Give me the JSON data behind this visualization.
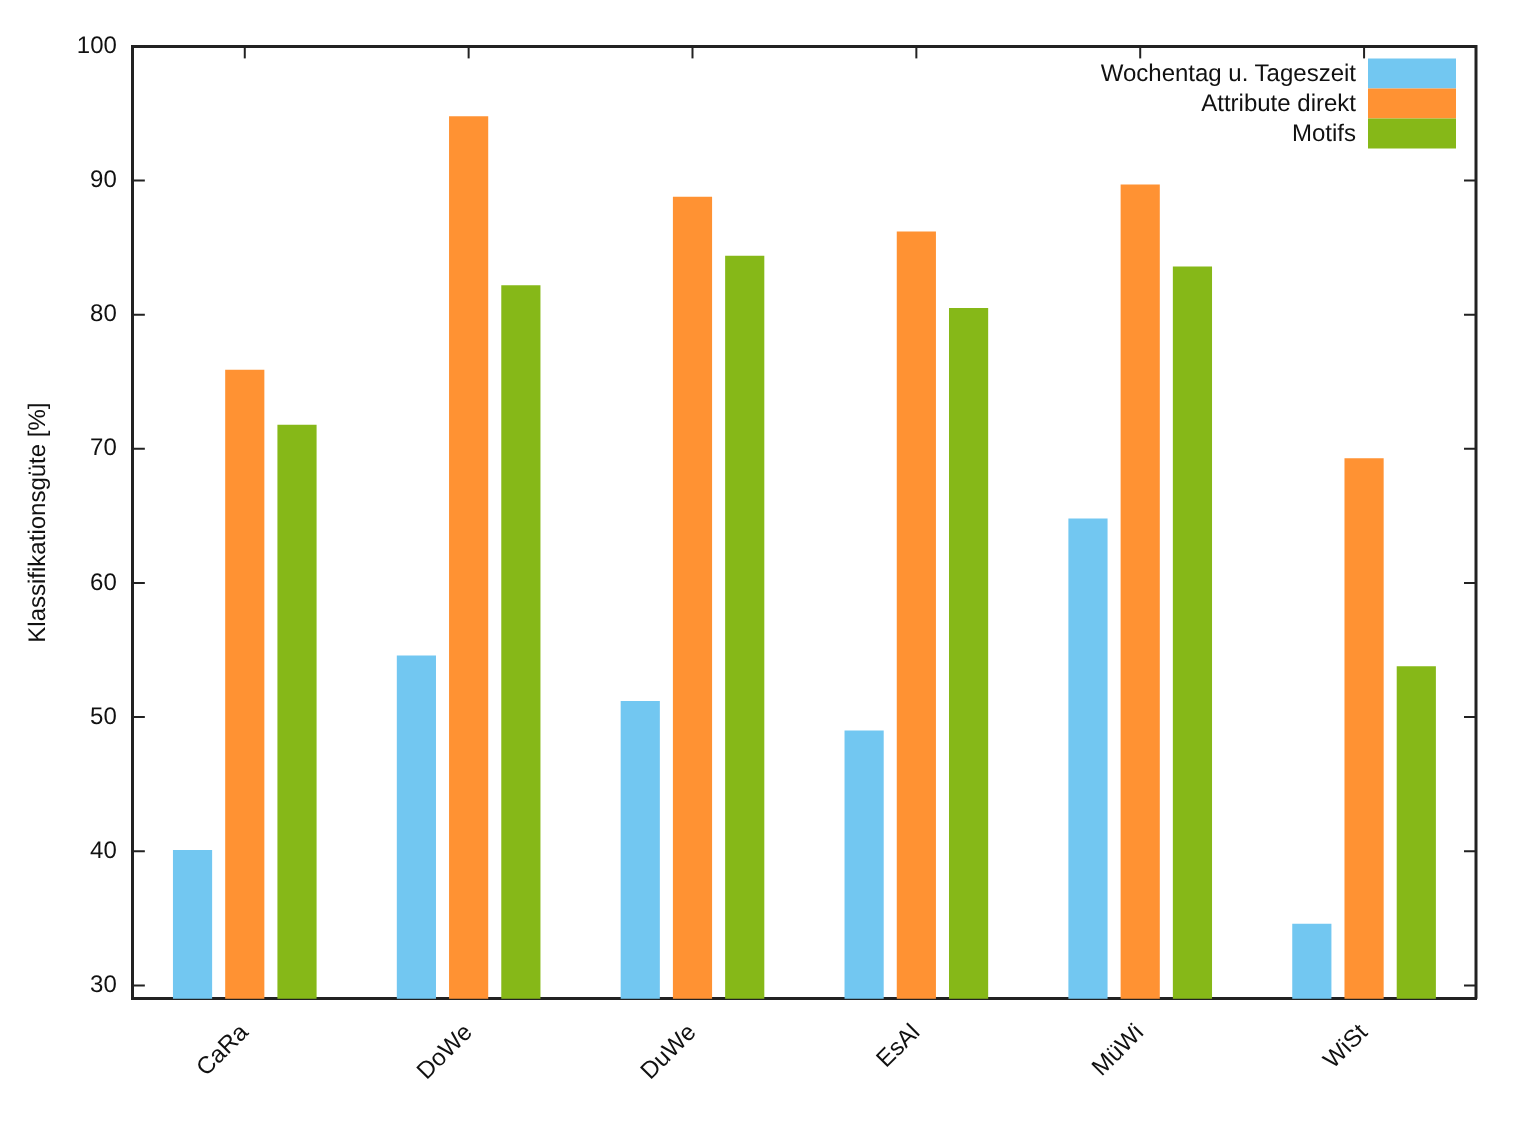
{
  "chart_data": {
    "type": "bar",
    "ylabel": "Klassifikationsgüte [%]",
    "categories": [
      "CaRa",
      "DoWe",
      "DuWe",
      "EsAl",
      "MüWi",
      "WiSt"
    ],
    "series": [
      {
        "name": "Wochentag u. Tageszeit",
        "color": "#72c7f1",
        "values": [
          40.1,
          54.6,
          51.2,
          49.0,
          64.8,
          34.6
        ]
      },
      {
        "name": "Attribute direkt",
        "color": "#ff9233",
        "values": [
          75.9,
          94.8,
          88.8,
          86.2,
          89.7,
          69.3
        ]
      },
      {
        "name": "Motifs",
        "color": "#86b818",
        "values": [
          71.8,
          82.2,
          84.4,
          80.5,
          83.6,
          53.8
        ]
      }
    ],
    "ylim": [
      29,
      100
    ],
    "yticks": [
      30,
      40,
      50,
      60,
      70,
      80,
      90,
      100
    ],
    "grid": false,
    "legend": "top right"
  }
}
